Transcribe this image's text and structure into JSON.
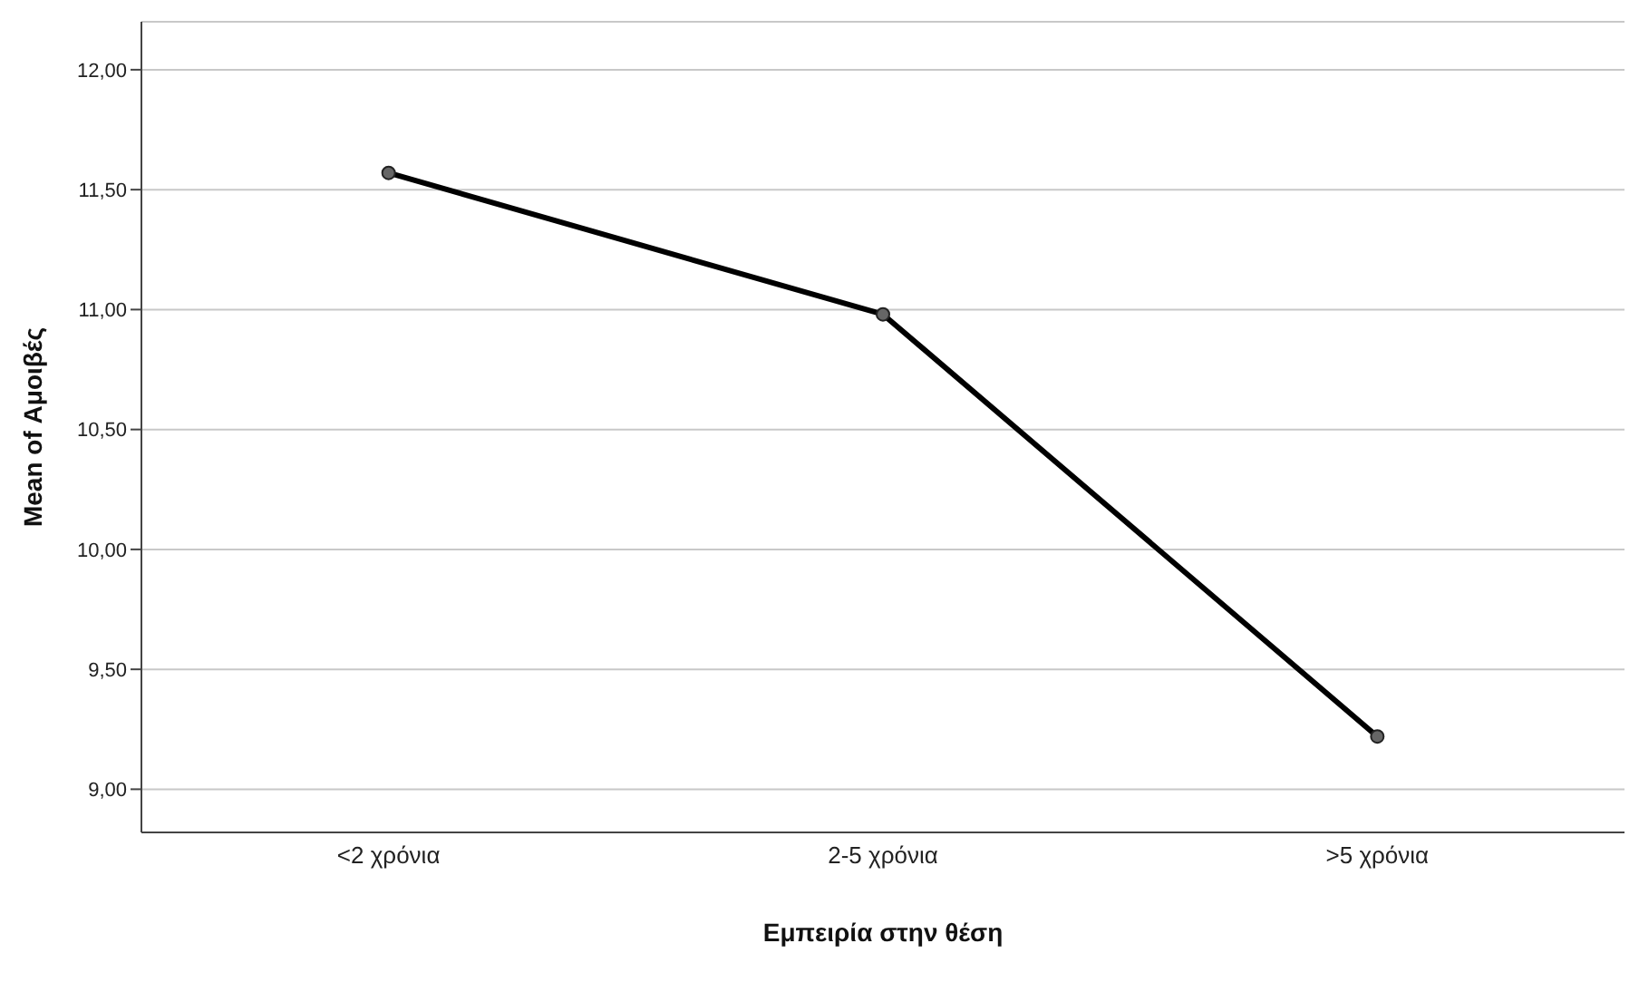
{
  "chart_data": {
    "type": "line",
    "xlabel": "Εμπειρία στην θέση",
    "ylabel": "Mean of Αμοιβές",
    "categories": [
      "<2 χρόνια",
      "2-5 χρόνια",
      ">5 χρόνια"
    ],
    "series": [
      {
        "color": "#000000",
        "values": [
          11.57,
          10.98,
          9.22
        ]
      }
    ],
    "ylim": [
      8.82,
      12.2
    ],
    "yticks": [
      {
        "value": 9,
        "label": "9,00"
      },
      {
        "value": 9.5,
        "label": "9,50"
      },
      {
        "value": 10,
        "label": "10,00"
      },
      {
        "value": 10.5,
        "label": "10,50"
      },
      {
        "value": 11,
        "label": "11,00"
      },
      {
        "value": 11.5,
        "label": "11,50"
      },
      {
        "value": 12,
        "label": "12,00"
      }
    ],
    "grid": "y",
    "marker": "circle",
    "line_style": "solid"
  }
}
